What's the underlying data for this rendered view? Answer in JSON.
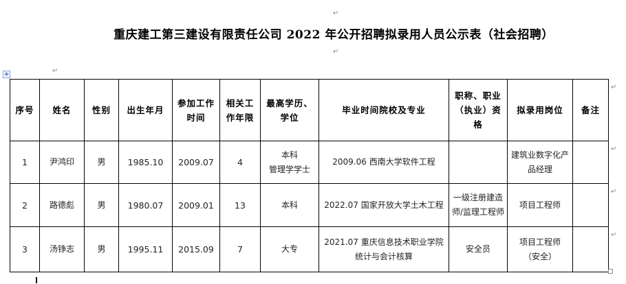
{
  "document": {
    "title": "重庆建工第三建设有限责任公司 2022 年公开招聘拟录用人员公示表（社会招聘）"
  },
  "table": {
    "headers": [
      "序号",
      "姓名",
      "性别",
      "出生年月",
      "参加工作时间",
      "相关工作年限",
      "最高学历、学位",
      "毕业时间院校及专业",
      "职称、职业（执业）资格",
      "拟录用岗位",
      "备注"
    ],
    "rows": [
      [
        "1",
        "尹鸿印",
        "男",
        "1985.10",
        "2009.07",
        "4",
        "本科\n管理学学士",
        "2009.06 西南大学软件工程",
        "",
        "建筑业数字化产品经理",
        ""
      ],
      [
        "2",
        "路德彪",
        "男",
        "1980.07",
        "2009.01",
        "13",
        "本科",
        "2022.07 国家开放大学土木工程",
        "一级注册建造师/监理工程师",
        "项目工程师",
        ""
      ],
      [
        "3",
        "汤铮志",
        "男",
        "1995.11",
        "2015.09",
        "7",
        "大专",
        "2021.07 重庆信息技术职业学院统计与会计核算",
        "安全员",
        "项目工程师\n（安全）",
        ""
      ]
    ]
  }
}
